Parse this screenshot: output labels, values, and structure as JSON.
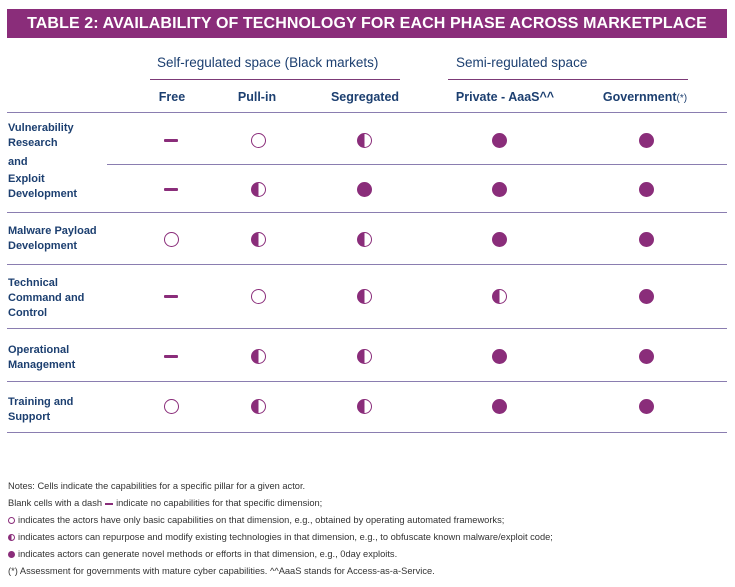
{
  "title": "TABLE 2: AVAILABILITY OF TECHNOLOGY FOR EACH PHASE ACROSS MARKETPLACE",
  "groups": {
    "self": "Self-regulated space (Black markets)",
    "semi": "Semi-regulated space"
  },
  "columns": {
    "free": "Free",
    "pullin": "Pull-in",
    "segregated": "Segregated",
    "private": "Private - AaaS^^",
    "government": "Government",
    "government_mark": "(*)"
  },
  "rows": {
    "r1": {
      "label_a": "Vulnerability",
      "label_b": "Research",
      "label_c": "and",
      "values": [
        "dash",
        "empty",
        "half",
        "full",
        "full"
      ]
    },
    "r2": {
      "label_a": "Exploit",
      "label_b": "Development",
      "values": [
        "dash",
        "half",
        "full",
        "full",
        "full"
      ]
    },
    "r3": {
      "label_a": "Malware Payload",
      "label_b": "Development",
      "values": [
        "empty",
        "half",
        "half",
        "full",
        "full"
      ]
    },
    "r4": {
      "label_a": "Technical",
      "label_b": "Command and",
      "label_c": "Control",
      "values": [
        "dash",
        "empty",
        "half",
        "half",
        "full"
      ]
    },
    "r5": {
      "label_a": "Operational",
      "label_b": "Management",
      "values": [
        "dash",
        "half",
        "half",
        "full",
        "full"
      ]
    },
    "r6": {
      "label_a": "Training and",
      "label_b": "Support",
      "values": [
        "empty",
        "half",
        "half",
        "full",
        "full"
      ]
    }
  },
  "notes": {
    "n1": "Notes: Cells indicate the capabilities for a specific pillar for a given actor.",
    "n2_a": "Blank cells with a dash",
    "n2_b": "indicate no capabilities for that specific dimension;",
    "n3": "indicates the actors have only basic capabilities on that dimension, e.g., obtained by operating automated frameworks;",
    "n4": "indicates actors can repurpose and modify existing technologies in that dimension, e.g., to obfuscate known malware/exploit code;",
    "n5": "indicates actors can generate novel methods or efforts in that dimension, e.g., 0day exploits.",
    "n6": "(*) Assessment for governments with mature cyber capabilities. ^^AaaS stands for Access-as-a-Service."
  },
  "colors": {
    "accent": "#8a2d7a",
    "heading": "#1c3f70",
    "rule": "#8a7db0"
  }
}
